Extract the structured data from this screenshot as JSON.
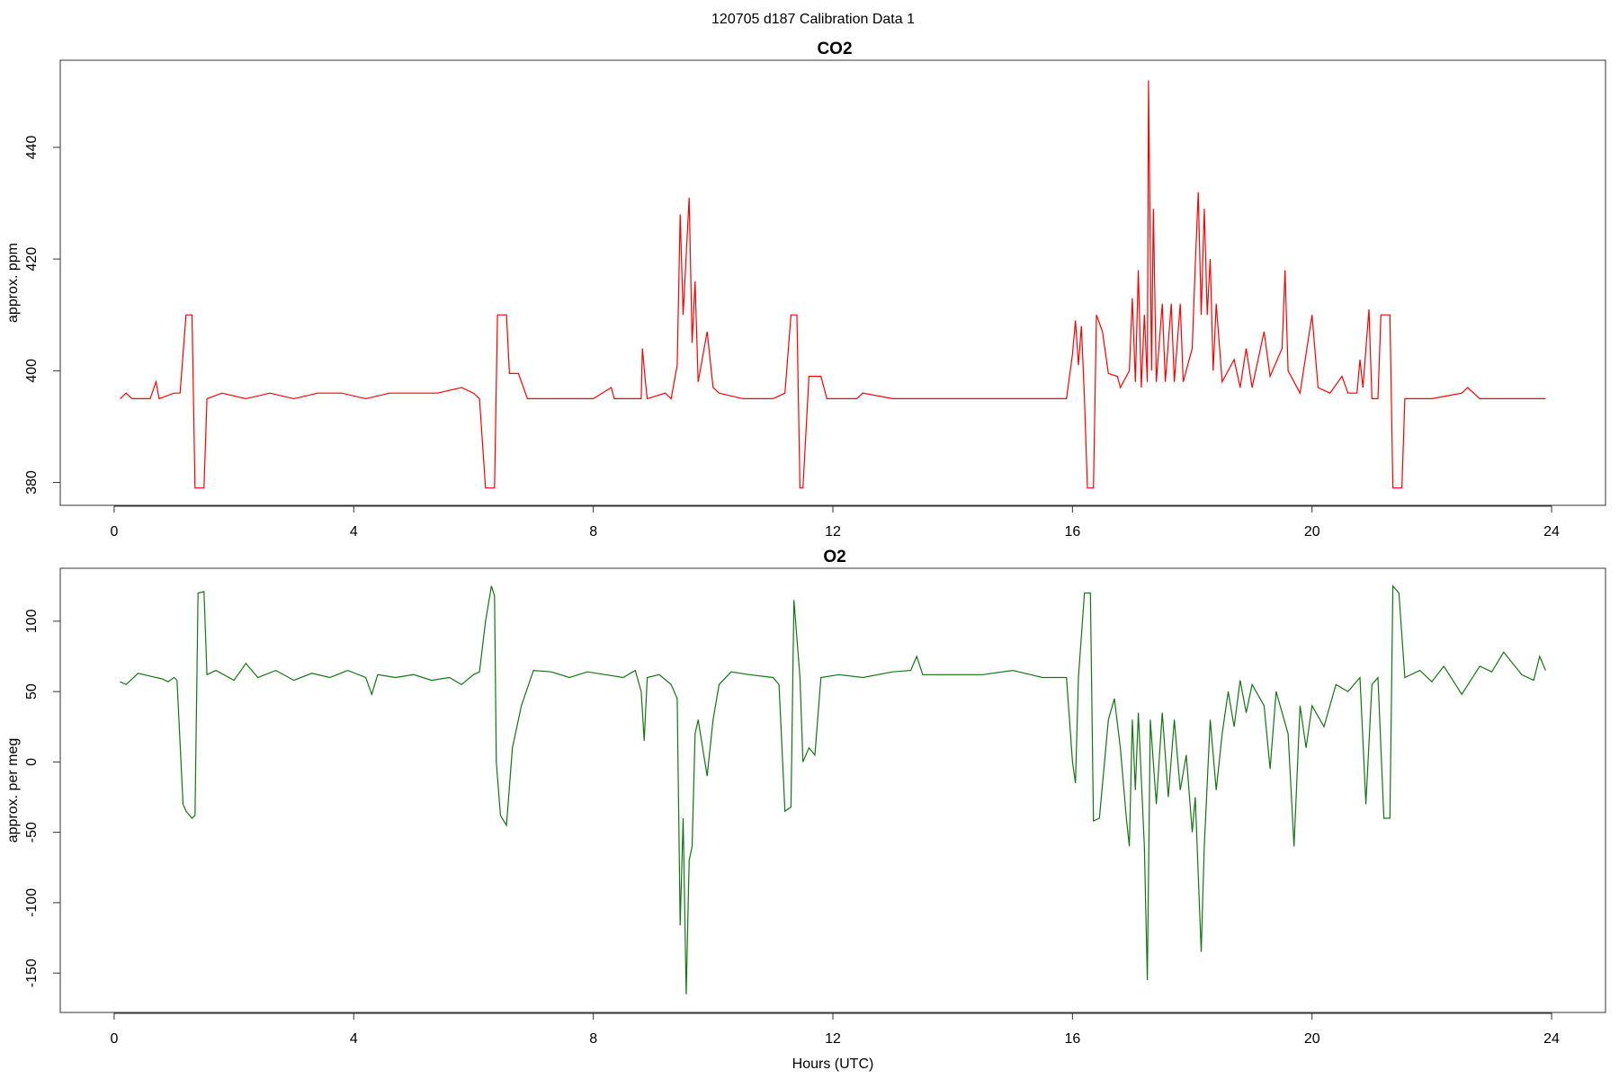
{
  "title": "120705   d187   Calibration Data 1",
  "chart_data": [
    {
      "type": "line",
      "title": "CO2",
      "ylabel": "approx. ppm",
      "color": "#ff0000",
      "xlim": [
        -0.9,
        24.9
      ],
      "xticks": [
        0,
        4,
        8,
        12,
        16,
        20,
        24
      ],
      "ylim": [
        375.9,
        455.6
      ],
      "yticks": [
        380,
        400,
        420,
        440
      ],
      "x": [
        0.1,
        0.2,
        0.3,
        0.6,
        0.7,
        0.75,
        1.0,
        1.1,
        1.2,
        1.3,
        1.35,
        1.5,
        1.55,
        1.8,
        2.2,
        2.6,
        3.0,
        3.4,
        3.8,
        4.2,
        4.6,
        5.0,
        5.4,
        5.8,
        6.0,
        6.1,
        6.2,
        6.35,
        6.4,
        6.55,
        6.6,
        6.75,
        6.9,
        7.5,
        8.0,
        8.3,
        8.35,
        8.8,
        8.82,
        8.87,
        8.9,
        9.2,
        9.3,
        9.4,
        9.45,
        9.5,
        9.6,
        9.65,
        9.7,
        9.75,
        9.9,
        10.0,
        10.1,
        10.5,
        11.0,
        11.2,
        11.3,
        11.4,
        11.45,
        11.5,
        11.6,
        11.8,
        11.9,
        12.4,
        12.5,
        13,
        14,
        15,
        15.9,
        16.0,
        16.05,
        16.1,
        16.15,
        16.2,
        16.25,
        16.35,
        16.4,
        16.5,
        16.6,
        16.75,
        16.8,
        16.95,
        17.0,
        17.05,
        17.1,
        17.15,
        17.2,
        17.25,
        17.27,
        17.32,
        17.35,
        17.4,
        17.5,
        17.55,
        17.65,
        17.7,
        17.8,
        17.85,
        18.0,
        18.05,
        18.1,
        18.15,
        18.2,
        18.25,
        18.3,
        18.35,
        18.4,
        18.5,
        18.7,
        18.8,
        18.9,
        19.0,
        19.2,
        19.3,
        19.5,
        19.55,
        19.6,
        19.8,
        20.0,
        20.1,
        20.3,
        20.5,
        20.6,
        20.75,
        20.8,
        20.85,
        20.95,
        21.0,
        21.1,
        21.15,
        21.3,
        21.35,
        21.5,
        21.55,
        22,
        22.5,
        22.6,
        22.8,
        23.3,
        23.9
      ],
      "values": [
        395,
        396,
        395,
        395,
        398,
        395,
        396,
        396,
        410,
        410,
        379,
        379,
        395,
        396,
        395,
        396,
        395,
        396,
        396,
        395,
        396,
        396,
        396,
        397,
        396,
        395,
        379,
        379,
        410,
        410,
        399.5,
        399.5,
        395,
        395,
        395,
        397,
        395,
        395,
        404,
        398,
        395,
        396,
        395,
        401,
        428,
        410,
        431,
        405,
        416,
        398,
        407,
        397,
        396,
        395,
        395,
        396,
        410,
        410,
        379,
        379,
        399,
        399,
        395,
        395,
        396,
        395,
        395,
        395,
        395,
        403,
        409,
        401,
        408,
        395,
        379,
        379,
        410,
        407,
        399.5,
        399,
        397,
        400,
        413,
        398,
        418,
        397,
        410,
        398,
        452,
        400,
        429,
        398,
        412,
        398,
        412,
        398,
        412,
        398,
        404,
        419,
        432,
        410,
        429,
        410,
        420,
        400,
        412,
        398,
        402,
        397,
        404,
        397,
        407,
        399,
        404,
        418,
        400,
        396,
        410,
        397,
        396,
        399,
        396,
        396,
        402,
        397,
        411,
        395,
        395,
        410,
        410,
        379,
        379,
        395,
        395,
        396,
        397,
        395,
        395,
        395
      ]
    },
    {
      "type": "line",
      "title": "O2",
      "ylabel": "approx. per meg",
      "xlabel": "Hours (UTC)",
      "color": "#117711",
      "xlim": [
        -0.9,
        24.9
      ],
      "xticks": [
        0,
        4,
        8,
        12,
        16,
        20,
        24
      ],
      "ylim": [
        -178,
        137.6
      ],
      "yticks": [
        -150,
        -100,
        -50,
        0,
        50,
        100
      ],
      "x": [
        0.1,
        0.2,
        0.4,
        0.6,
        0.8,
        0.9,
        1.0,
        1.05,
        1.15,
        1.2,
        1.3,
        1.35,
        1.4,
        1.5,
        1.55,
        1.7,
        2.0,
        2.2,
        2.4,
        2.7,
        3.0,
        3.3,
        3.6,
        3.9,
        4.2,
        4.3,
        4.4,
        4.7,
        5.0,
        5.3,
        5.6,
        5.8,
        6.0,
        6.1,
        6.2,
        6.3,
        6.35,
        6.38,
        6.45,
        6.55,
        6.65,
        6.8,
        7.0,
        7.3,
        7.6,
        7.9,
        8.2,
        8.5,
        8.7,
        8.8,
        8.85,
        8.9,
        9.1,
        9.3,
        9.4,
        9.45,
        9.5,
        9.55,
        9.6,
        9.65,
        9.7,
        9.75,
        9.9,
        10.0,
        10.1,
        10.3,
        10.6,
        11.0,
        11.1,
        11.2,
        11.3,
        11.35,
        11.45,
        11.5,
        11.6,
        11.7,
        11.8,
        12.1,
        12.5,
        13.0,
        13.3,
        13.4,
        13.5,
        14.0,
        14.5,
        15.0,
        15.5,
        15.9,
        16.0,
        16.05,
        16.1,
        16.2,
        16.3,
        16.35,
        16.45,
        16.6,
        16.7,
        16.8,
        16.9,
        16.95,
        17.0,
        17.05,
        17.1,
        17.2,
        17.25,
        17.3,
        17.4,
        17.5,
        17.6,
        17.7,
        17.8,
        17.9,
        18.0,
        18.05,
        18.1,
        18.15,
        18.2,
        18.3,
        18.4,
        18.5,
        18.6,
        18.7,
        18.8,
        18.9,
        19.0,
        19.2,
        19.3,
        19.4,
        19.6,
        19.7,
        19.8,
        19.9,
        20.0,
        20.2,
        20.4,
        20.6,
        20.8,
        20.9,
        21.0,
        21.1,
        21.2,
        21.3,
        21.35,
        21.45,
        21.55,
        21.8,
        22.0,
        22.2,
        22.5,
        22.8,
        23.0,
        23.2,
        23.5,
        23.7,
        23.8,
        23.9
      ],
      "values": [
        57,
        55,
        63,
        61,
        59,
        57,
        60,
        58,
        -30,
        -35,
        -40,
        -38,
        120,
        121,
        62,
        65,
        58,
        70,
        60,
        65,
        58,
        63,
        60,
        65,
        60,
        48,
        62,
        60,
        62,
        58,
        60,
        55,
        62,
        64,
        100,
        125,
        118,
        0,
        -38,
        -45,
        10,
        40,
        65,
        64,
        60,
        64,
        62,
        60,
        65,
        50,
        15,
        60,
        62,
        55,
        45,
        -116,
        -40,
        -165,
        -70,
        -60,
        20,
        30,
        -10,
        30,
        55,
        64,
        62,
        60,
        55,
        -35,
        -32,
        115,
        60,
        0,
        10,
        5,
        60,
        62,
        60,
        64,
        65,
        75,
        62,
        62,
        62,
        65,
        60,
        60,
        0,
        -15,
        60,
        120,
        120,
        -42,
        -40,
        30,
        45,
        10,
        -40,
        -60,
        30,
        -20,
        35,
        -60,
        -155,
        30,
        -30,
        35,
        -25,
        30,
        -20,
        5,
        -50,
        -25,
        -80,
        -135,
        -60,
        30,
        -20,
        20,
        50,
        25,
        58,
        35,
        55,
        40,
        -5,
        50,
        20,
        -60,
        40,
        10,
        40,
        25,
        55,
        50,
        60,
        -30,
        55,
        60,
        -40,
        -40,
        125,
        120,
        60,
        65,
        57,
        68,
        48,
        68,
        64,
        78,
        62,
        58,
        75,
        65
      ]
    }
  ]
}
